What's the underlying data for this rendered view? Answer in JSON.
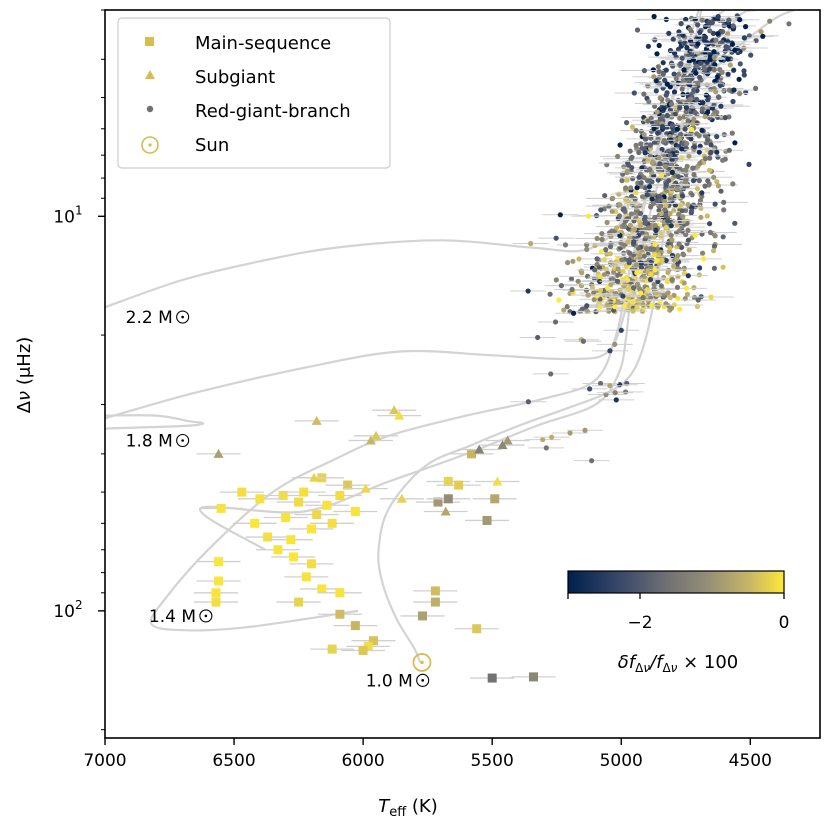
{
  "chart_data": {
    "type": "scatter",
    "x_axis": {
      "label_main": "T",
      "label_sub": "eff",
      "label_unit": " (K)",
      "range": [
        7000,
        4230
      ],
      "inverted": true,
      "ticks": [
        7000,
        6500,
        6000,
        5500,
        5000,
        4500
      ],
      "tick_labels": [
        "7000",
        "6500",
        "6000",
        "5500",
        "5000",
        "4500"
      ]
    },
    "y_axis": {
      "label_delta": "Δ",
      "label_nu": "ν",
      "label_unit": " (μHz)",
      "scale": "log",
      "inverted": true,
      "range": [
        3.0,
        210
      ],
      "ticks": [
        10,
        100
      ],
      "tick_base": "10",
      "tick_exponents": [
        "1",
        "2"
      ]
    },
    "legend": {
      "placement": "top-left",
      "entries": [
        {
          "marker": "square",
          "label": "Main-sequence"
        },
        {
          "marker": "triangle",
          "label": "Subgiant"
        },
        {
          "marker": "dot",
          "label": "Red-giant-branch"
        },
        {
          "marker": "sun",
          "label": "Sun"
        }
      ]
    },
    "colorbar": {
      "ticks": [
        -3,
        -2,
        0
      ],
      "tick_labels": [
        "",
        "−2",
        "0"
      ],
      "range": [
        -3,
        0
      ],
      "label": "δf_Δν / f_Δν × 100",
      "colors": [
        "#00204c",
        "#575c6d",
        "#7c7b78",
        "#a59c74",
        "#d3c164",
        "#fee838"
      ]
    },
    "tracks": [
      {
        "label": "1.0 M⊙",
        "points": [
          [
            5780,
            135
          ],
          [
            5800,
            125
          ],
          [
            5870,
            105
          ],
          [
            5925,
            85
          ],
          [
            5940,
            70
          ],
          [
            5900,
            55
          ],
          [
            5760,
            43
          ],
          [
            5580,
            38
          ],
          [
            5400,
            34
          ],
          [
            5230,
            31
          ],
          [
            5080,
            28.5
          ],
          [
            4980,
            26
          ],
          [
            4920,
            22
          ],
          [
            4870,
            16
          ],
          [
            4830,
            10.5
          ],
          [
            4790,
            7.5
          ],
          [
            4750,
            5.2
          ],
          [
            4720,
            3.8
          ],
          [
            4690,
            3.0
          ]
        ]
      },
      {
        "label": "1.4 M⊙",
        "points": [
          [
            6020,
            100
          ],
          [
            6450,
            110
          ],
          [
            6680,
            112
          ],
          [
            6820,
            108
          ],
          [
            6760,
            92
          ],
          [
            6600,
            70
          ],
          [
            6350,
            50
          ],
          [
            6100,
            41
          ],
          [
            5900,
            36
          ],
          [
            5600,
            32
          ],
          [
            5300,
            29
          ],
          [
            5100,
            26
          ],
          [
            5020,
            20
          ],
          [
            4970,
            14
          ],
          [
            4920,
            10
          ],
          [
            4850,
            6.5
          ],
          [
            4770,
            4.2
          ],
          [
            4700,
            3.0
          ]
        ]
      },
      {
        "label": "1.8 M⊙",
        "points": [
          [
            6380,
            70
          ],
          [
            6630,
            55
          ],
          [
            6230,
            56
          ],
          [
            5900,
            47
          ],
          [
            5600,
            40
          ],
          [
            5330,
            34
          ],
          [
            5100,
            30
          ],
          [
            5010,
            25
          ],
          [
            4980,
            20
          ],
          [
            4950,
            13
          ],
          [
            4900,
            8.5
          ],
          [
            4820,
            5.5
          ],
          [
            4700,
            3.5
          ],
          [
            4600,
            3.0
          ]
        ]
      },
      {
        "label": "1.8 M⊙ branch",
        "points": [
          [
            7000,
            32
          ],
          [
            6800,
            32
          ],
          [
            6680,
            33
          ],
          [
            6620,
            33.5
          ],
          [
            6700,
            34
          ],
          [
            7000,
            34.5
          ]
        ]
      },
      {
        "label": "1.8 M⊙ upper",
        "points": [
          [
            7000,
            32.5
          ],
          [
            6650,
            28
          ],
          [
            6200,
            24
          ],
          [
            5850,
            22
          ],
          [
            5500,
            22.5
          ],
          [
            5200,
            23
          ],
          [
            5050,
            22
          ],
          [
            4980,
            17
          ],
          [
            4920,
            12
          ],
          [
            4850,
            8
          ],
          [
            4720,
            5
          ],
          [
            4560,
            3.2
          ],
          [
            4480,
            3.0
          ]
        ]
      },
      {
        "label": "2.2 M⊙",
        "points": [
          [
            7000,
            17
          ],
          [
            6700,
            14.5
          ],
          [
            6400,
            13
          ],
          [
            6100,
            12
          ],
          [
            5700,
            11.5
          ],
          [
            5350,
            12
          ],
          [
            5150,
            12.2
          ],
          [
            5030,
            11
          ],
          [
            4960,
            9
          ],
          [
            4900,
            7
          ],
          [
            4800,
            5.5
          ],
          [
            4600,
            4.0
          ],
          [
            4420,
            3.2
          ],
          [
            4330,
            3.0
          ]
        ]
      }
    ],
    "track_labels": [
      {
        "text": "2.2 M",
        "x": 6920,
        "y": 18
      },
      {
        "text": "1.8 M",
        "x": 6920,
        "y": 37
      },
      {
        "text": "1.4 M",
        "x": 6830,
        "y": 103
      },
      {
        "text": "1.0 M",
        "x": 5990,
        "y": 150
      }
    ],
    "sun": {
      "teff": 5772,
      "dnu": 135.1
    },
    "main_sequence": [
      {
        "teff": 6550,
        "dnu": 55,
        "v": -0.05
      },
      {
        "teff": 6470,
        "dnu": 50,
        "v": -0.1
      },
      {
        "teff": 6420,
        "dnu": 60,
        "v": -0.02
      },
      {
        "teff": 6370,
        "dnu": 65,
        "v": -0.08
      },
      {
        "teff": 6310,
        "dnu": 51,
        "v": -0.1
      },
      {
        "teff": 6300,
        "dnu": 58,
        "v": -0.05
      },
      {
        "teff": 6280,
        "dnu": 66,
        "v": -0.04
      },
      {
        "teff": 6250,
        "dnu": 53,
        "v": -0.12
      },
      {
        "teff": 6230,
        "dnu": 50,
        "v": -0.08
      },
      {
        "teff": 6200,
        "dnu": 62,
        "v": -0.03
      },
      {
        "teff": 6180,
        "dnu": 57,
        "v": -0.15
      },
      {
        "teff": 6160,
        "dnu": 46,
        "v": -0.2
      },
      {
        "teff": 6140,
        "dnu": 54,
        "v": -0.06
      },
      {
        "teff": 6120,
        "dnu": 60,
        "v": -0.09
      },
      {
        "teff": 6090,
        "dnu": 51,
        "v": -0.11
      },
      {
        "teff": 6060,
        "dnu": 48,
        "v": -0.3
      },
      {
        "teff": 6030,
        "dnu": 56,
        "v": -0.05
      },
      {
        "teff": 6270,
        "dnu": 73,
        "v": -0.03
      },
      {
        "teff": 6220,
        "dnu": 82,
        "v": -0.06
      },
      {
        "teff": 6160,
        "dnu": 88,
        "v": -0.04
      },
      {
        "teff": 6090,
        "dnu": 90,
        "v": -0.05
      },
      {
        "teff": 6250,
        "dnu": 95,
        "v": -0.2
      },
      {
        "teff": 6090,
        "dnu": 102,
        "v": -0.4
      },
      {
        "teff": 6030,
        "dnu": 109,
        "v": -0.5
      },
      {
        "teff": 5960,
        "dnu": 119,
        "v": -0.35
      },
      {
        "teff": 6120,
        "dnu": 125,
        "v": -0.2
      },
      {
        "teff": 5980,
        "dnu": 123,
        "v": -0.1
      },
      {
        "teff": 6560,
        "dnu": 75,
        "v": -0.02
      },
      {
        "teff": 6560,
        "dnu": 84,
        "v": -0.04
      },
      {
        "teff": 6570,
        "dnu": 90,
        "v": -0.06
      },
      {
        "teff": 6570,
        "dnu": 95,
        "v": -0.08
      },
      {
        "teff": 5720,
        "dnu": 89,
        "v": -0.4
      },
      {
        "teff": 5720,
        "dnu": 95,
        "v": -0.6
      },
      {
        "teff": 5770,
        "dnu": 103,
        "v": -0.8
      },
      {
        "teff": 5560,
        "dnu": 111,
        "v": -0.3
      },
      {
        "teff": 5670,
        "dnu": 47,
        "v": -0.2
      },
      {
        "teff": 5630,
        "dnu": 48,
        "v": -0.25
      },
      {
        "teff": 5580,
        "dnu": 40,
        "v": -0.5
      },
      {
        "teff": 5710,
        "dnu": 53,
        "v": -0.9
      },
      {
        "teff": 5670,
        "dnu": 52,
        "v": -1.1
      },
      {
        "teff": 5490,
        "dnu": 52,
        "v": -0.7
      },
      {
        "teff": 5520,
        "dnu": 59,
        "v": -0.9
      },
      {
        "teff": 5500,
        "dnu": 148,
        "v": -1.6
      },
      {
        "teff": 5340,
        "dnu": 147,
        "v": -1.2
      },
      {
        "teff": 6000,
        "dnu": 126,
        "v": -0.3
      },
      {
        "teff": 6400,
        "dnu": 52,
        "v": -0.07
      },
      {
        "teff": 6330,
        "dnu": 70,
        "v": -0.05
      },
      {
        "teff": 6200,
        "dnu": 76,
        "v": -0.1
      }
    ],
    "subgiants": [
      {
        "teff": 6180,
        "dnu": 33,
        "v": -0.4
      },
      {
        "teff": 5880,
        "dnu": 31,
        "v": -0.3
      },
      {
        "teff": 5860,
        "dnu": 32,
        "v": -0.1
      },
      {
        "teff": 5970,
        "dnu": 37,
        "v": -0.5
      },
      {
        "teff": 5950,
        "dnu": 36,
        "v": -0.3
      },
      {
        "teff": 6560,
        "dnu": 40,
        "v": -0.8
      },
      {
        "teff": 6190,
        "dnu": 46,
        "v": -0.2
      },
      {
        "teff": 6060,
        "dnu": 48,
        "v": -0.3
      },
      {
        "teff": 5990,
        "dnu": 49,
        "v": -0.15
      },
      {
        "teff": 5440,
        "dnu": 37,
        "v": -0.9
      },
      {
        "teff": 5460,
        "dnu": 38,
        "v": -1.2
      },
      {
        "teff": 5550,
        "dnu": 39,
        "v": -1.3
      },
      {
        "teff": 5480,
        "dnu": 47,
        "v": -0.1
      },
      {
        "teff": 5680,
        "dnu": 56,
        "v": -0.7
      },
      {
        "teff": 5850,
        "dnu": 52,
        "v": -0.2
      }
    ],
    "rgb_sample": {
      "count": 1350,
      "teff_center": 4950,
      "dnu_range": [
        3.1,
        17.5
      ],
      "v_range": [
        -3,
        0
      ]
    }
  }
}
